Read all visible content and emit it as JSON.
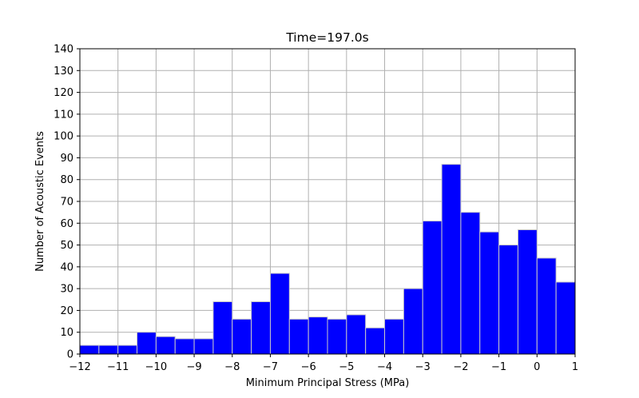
{
  "chart_data": {
    "type": "bar",
    "title": "Time=197.0s",
    "xlabel": "Minimum Principal Stress (MPa)",
    "ylabel": "Number of Acoustic Events",
    "xlim": [
      -12,
      1
    ],
    "ylim": [
      0,
      140
    ],
    "xticks": [
      -12,
      -11,
      -10,
      -9,
      -8,
      -7,
      -6,
      -5,
      -4,
      -3,
      -2,
      -1,
      0,
      1
    ],
    "xtick_labels": [
      "−12",
      "−11",
      "−10",
      "−9",
      "−8",
      "−7",
      "−6",
      "−5",
      "−4",
      "−3",
      "−2",
      "−1",
      "0",
      "1"
    ],
    "yticks": [
      0,
      10,
      20,
      30,
      40,
      50,
      60,
      70,
      80,
      90,
      100,
      110,
      120,
      130,
      140
    ],
    "ytick_labels": [
      "0",
      "10",
      "20",
      "30",
      "40",
      "50",
      "60",
      "70",
      "80",
      "90",
      "100",
      "110",
      "120",
      "130",
      "140"
    ],
    "grid": true,
    "bar_color": "#0000ff",
    "edge_color": "#c8c8c8",
    "bins": [
      {
        "x0": -12.0,
        "x1": -11.5,
        "count": 4
      },
      {
        "x0": -11.5,
        "x1": -11.0,
        "count": 4
      },
      {
        "x0": -11.0,
        "x1": -10.5,
        "count": 4
      },
      {
        "x0": -10.5,
        "x1": -10.0,
        "count": 10
      },
      {
        "x0": -10.0,
        "x1": -9.5,
        "count": 8
      },
      {
        "x0": -9.5,
        "x1": -9.0,
        "count": 7
      },
      {
        "x0": -9.0,
        "x1": -8.5,
        "count": 7
      },
      {
        "x0": -8.5,
        "x1": -8.0,
        "count": 24
      },
      {
        "x0": -8.0,
        "x1": -7.5,
        "count": 16
      },
      {
        "x0": -7.5,
        "x1": -7.0,
        "count": 24
      },
      {
        "x0": -7.0,
        "x1": -6.5,
        "count": 37
      },
      {
        "x0": -6.5,
        "x1": -6.0,
        "count": 16
      },
      {
        "x0": -6.0,
        "x1": -5.5,
        "count": 17
      },
      {
        "x0": -5.5,
        "x1": -5.0,
        "count": 16
      },
      {
        "x0": -5.0,
        "x1": -4.5,
        "count": 18
      },
      {
        "x0": -4.5,
        "x1": -4.0,
        "count": 12
      },
      {
        "x0": -4.0,
        "x1": -3.5,
        "count": 16
      },
      {
        "x0": -3.5,
        "x1": -3.0,
        "count": 30
      },
      {
        "x0": -3.0,
        "x1": -2.5,
        "count": 61
      },
      {
        "x0": -2.5,
        "x1": -2.0,
        "count": 87
      },
      {
        "x0": -2.0,
        "x1": -1.5,
        "count": 65
      },
      {
        "x0": -1.5,
        "x1": -1.0,
        "count": 56
      },
      {
        "x0": -1.0,
        "x1": -0.5,
        "count": 50
      },
      {
        "x0": -0.5,
        "x1": 0.0,
        "count": 57
      },
      {
        "x0": 0.0,
        "x1": 0.5,
        "count": 44
      },
      {
        "x0": 0.5,
        "x1": 1.0,
        "count": 33
      }
    ]
  }
}
